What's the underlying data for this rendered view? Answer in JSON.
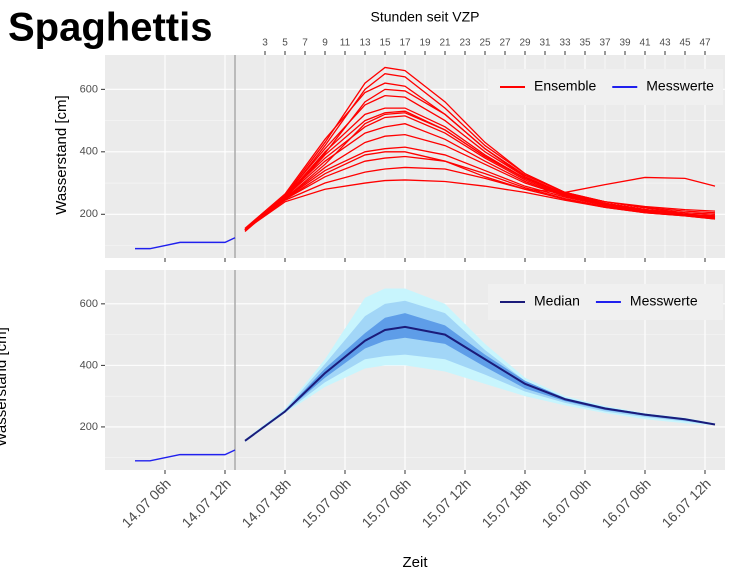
{
  "chart_data": [
    {
      "type": "line",
      "title": "Spaghettis",
      "x2label": "Stunden seit VZP",
      "ylabel": "Wasserstand [cm]",
      "xlim": [
        0,
        62
      ],
      "x2lim": [
        -13,
        49
      ],
      "x2ticks": [
        3,
        5,
        7,
        9,
        11,
        13,
        15,
        17,
        19,
        21,
        23,
        25,
        27,
        29,
        31,
        33,
        35,
        37,
        39,
        41,
        43,
        45,
        47
      ],
      "ylim": [
        60,
        710
      ],
      "yticks": [
        200,
        400,
        600
      ],
      "grid": true,
      "legend": "top-right",
      "series": [
        {
          "name": "Ensemble",
          "color": "#ff0000",
          "x": [
            14,
            18,
            22,
            26,
            28,
            30,
            34,
            38,
            42,
            46,
            50,
            54,
            58,
            61
          ],
          "members": [
            [
              150,
              260,
              430,
              620,
              670,
              660,
              560,
              430,
              330,
              270,
              240,
              220,
              205,
              200
            ],
            [
              145,
              255,
              420,
              600,
              650,
              640,
              540,
              420,
              330,
              270,
              235,
              215,
              200,
              195
            ],
            [
              155,
              265,
              440,
              590,
              620,
              610,
              520,
              410,
              320,
              265,
              235,
              215,
              200,
              190
            ],
            [
              150,
              260,
              410,
              550,
              580,
              575,
              500,
              400,
              320,
              265,
              235,
              215,
              200,
              190
            ],
            [
              150,
              255,
              400,
              520,
              540,
              540,
              480,
              390,
              315,
              265,
              235,
              215,
              200,
              195
            ],
            [
              148,
              250,
              390,
              500,
              525,
              530,
              470,
              385,
              315,
              265,
              235,
              215,
              205,
              200
            ],
            [
              152,
              258,
              380,
              480,
              510,
              515,
              460,
              380,
              310,
              262,
              232,
              212,
              200,
              195
            ],
            [
              150,
              255,
              370,
              460,
              480,
              490,
              440,
              370,
              305,
              260,
              232,
              212,
              200,
              190
            ],
            [
              150,
              250,
              350,
              430,
              450,
              455,
              420,
              360,
              300,
              258,
              230,
              210,
              198,
              190
            ],
            [
              150,
              250,
              340,
              400,
              410,
              415,
              390,
              340,
              290,
              255,
              228,
              210,
              198,
              188
            ],
            [
              150,
              248,
              320,
              370,
              380,
              385,
              370,
              330,
              285,
              250,
              225,
              208,
              196,
              186
            ],
            [
              150,
              245,
              300,
              335,
              345,
              350,
              345,
              315,
              280,
              248,
              222,
              205,
              195,
              185
            ],
            [
              150,
              240,
              280,
              300,
              308,
              310,
              305,
              290,
              270,
              245,
              222,
              205,
              195,
              185
            ],
            [
              150,
              248,
              330,
              390,
              400,
              400,
              370,
              320,
              280,
              270,
              295,
              318,
              315,
              290
            ],
            [
              150,
              255,
              395,
              560,
              600,
              595,
              520,
              410,
              325,
              270,
              240,
              222,
              210,
              205
            ],
            [
              150,
              250,
              360,
              490,
              520,
              525,
              470,
              385,
              315,
              268,
              240,
              225,
              215,
              210
            ]
          ]
        },
        {
          "name": "Messwerte",
          "color": "#2020ee",
          "x": [
            3,
            4.5,
            6,
            7.5,
            9,
            10.5,
            12,
            13
          ],
          "values": [
            90,
            90,
            100,
            110,
            110,
            110,
            110,
            125
          ]
        }
      ]
    },
    {
      "type": "line",
      "xlabel": "Zeit",
      "ylabel": "Wasserstand [cm]",
      "xlim": [
        0,
        62
      ],
      "xticks": [
        {
          "value": 6,
          "label": "14.07 06h"
        },
        {
          "value": 12,
          "label": "14.07 12h"
        },
        {
          "value": 18,
          "label": "14.07 18h"
        },
        {
          "value": 24,
          "label": "15.07 00h"
        },
        {
          "value": 30,
          "label": "15.07 06h"
        },
        {
          "value": 36,
          "label": "15.07 12h"
        },
        {
          "value": 42,
          "label": "15.07 18h"
        },
        {
          "value": 48,
          "label": "16.07 00h"
        },
        {
          "value": 54,
          "label": "16.07 06h"
        },
        {
          "value": 60,
          "label": "16.07 12h"
        }
      ],
      "ylim": [
        60,
        710
      ],
      "yticks": [
        200,
        400,
        600
      ],
      "grid": true,
      "legend": "top-right",
      "bands": [
        {
          "color": "#c8f5fd",
          "x": [
            14,
            18,
            22,
            26,
            28,
            30,
            34,
            38,
            42,
            46,
            50,
            54,
            58,
            61
          ],
          "lower": [
            150,
            245,
            330,
            390,
            400,
            400,
            380,
            340,
            300,
            270,
            245,
            225,
            212,
            205
          ],
          "upper": [
            160,
            260,
            420,
            620,
            650,
            650,
            600,
            470,
            360,
            300,
            268,
            245,
            230,
            212
          ]
        },
        {
          "color": "#a2d6f7",
          "x": [
            14,
            18,
            22,
            26,
            28,
            30,
            34,
            38,
            42,
            46,
            50,
            54,
            58,
            61
          ],
          "lower": [
            152,
            247,
            345,
            420,
            430,
            435,
            420,
            370,
            315,
            278,
            250,
            232,
            218,
            206
          ],
          "upper": [
            158,
            256,
            405,
            560,
            600,
            610,
            570,
            450,
            350,
            295,
            264,
            243,
            228,
            210
          ]
        },
        {
          "color": "#5e9de8",
          "x": [
            14,
            18,
            22,
            26,
            28,
            30,
            34,
            38,
            42,
            46,
            50,
            54,
            58,
            61
          ],
          "lower": [
            153,
            248,
            360,
            455,
            480,
            490,
            470,
            395,
            325,
            284,
            255,
            236,
            221,
            207
          ],
          "upper": [
            157,
            253,
            390,
            505,
            555,
            570,
            530,
            435,
            350,
            294,
            264,
            243,
            227,
            209
          ]
        }
      ],
      "series": [
        {
          "name": "Median",
          "color": "#1b1b7a",
          "x": [
            14,
            18,
            22,
            26,
            28,
            30,
            34,
            38,
            42,
            46,
            50,
            54,
            58,
            61
          ],
          "values": [
            155,
            250,
            375,
            480,
            515,
            525,
            500,
            420,
            340,
            290,
            260,
            240,
            225,
            208
          ]
        },
        {
          "name": "Messwerte",
          "color": "#2020ee",
          "x": [
            3,
            4.5,
            6,
            7.5,
            9,
            10.5,
            12,
            13
          ],
          "values": [
            90,
            90,
            100,
            110,
            110,
            110,
            110,
            125
          ]
        }
      ]
    }
  ]
}
